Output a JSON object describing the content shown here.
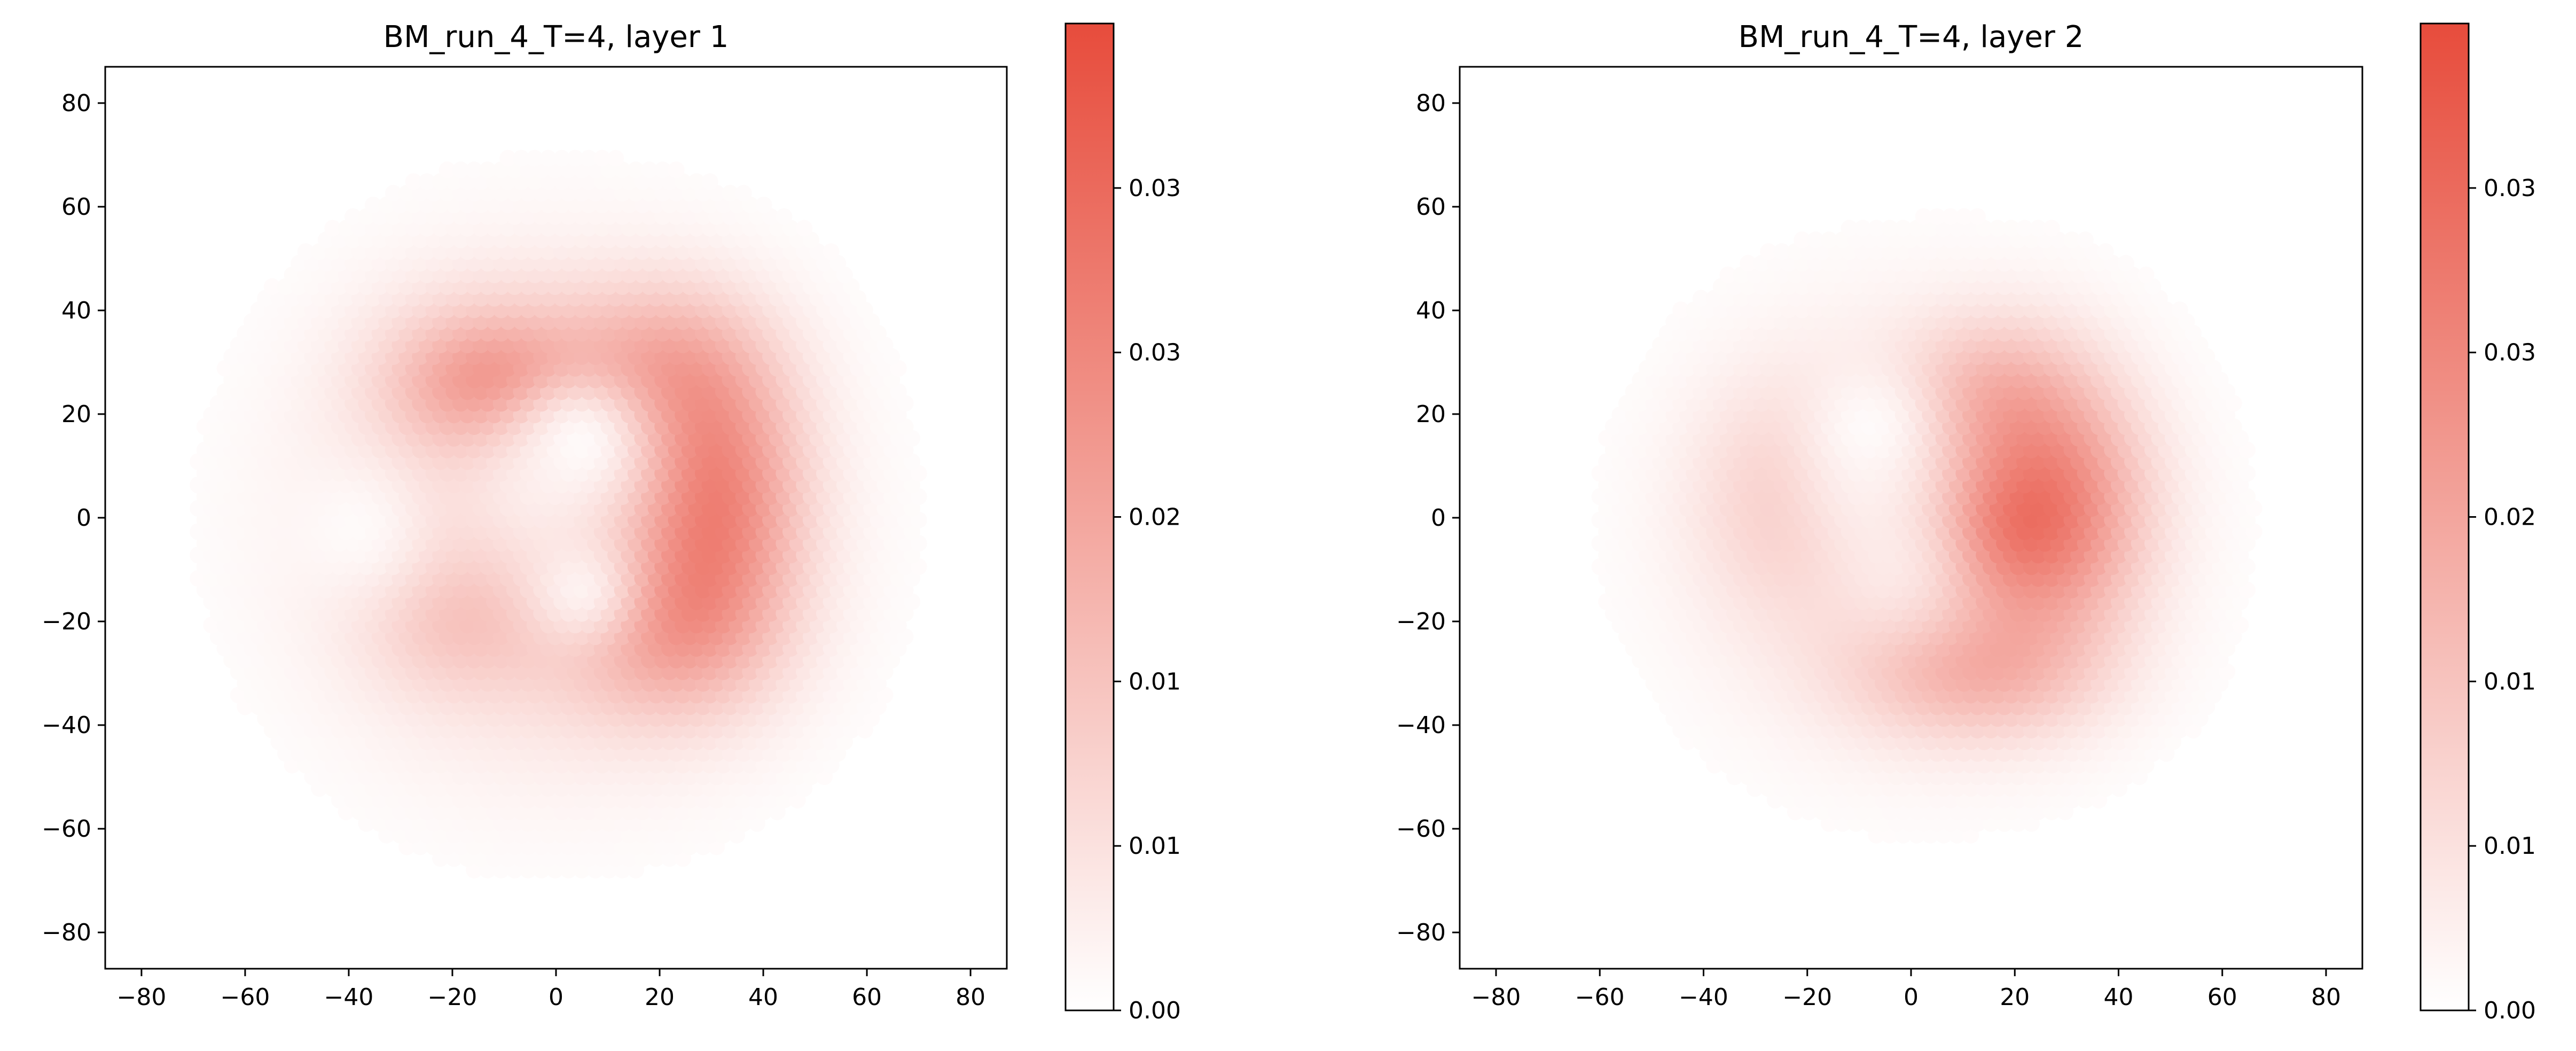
{
  "chart_data": [
    {
      "type": "heatmap",
      "title": "BM_run_4_T=4, layer 1",
      "xlabel": "",
      "ylabel": "",
      "xlim": [
        -87,
        87
      ],
      "ylim": [
        -87,
        87
      ],
      "x_ticks": [
        -80,
        -60,
        -40,
        -20,
        0,
        20,
        40,
        60,
        80
      ],
      "x_tick_labels": [
        "−80",
        "−60",
        "−40",
        "−20",
        "0",
        "20",
        "40",
        "60",
        "80"
      ],
      "y_ticks": [
        80,
        60,
        40,
        20,
        0,
        -20,
        -40,
        -60,
        -80
      ],
      "y_tick_labels": [
        "80",
        "60",
        "40",
        "20",
        "0",
        "−20",
        "−40",
        "−60",
        "−80"
      ],
      "grid": false,
      "colormap": [
        "#ffffff",
        "#e74c3c"
      ],
      "colorbar": {
        "min": 0.0,
        "max": 0.039,
        "tick_values": [
          0.0,
          0.0065,
          0.013,
          0.0195,
          0.026,
          0.0325
        ],
        "tick_labels": [
          "0.00",
          "0.01",
          "0.01",
          "0.02",
          "0.03",
          "0.03"
        ]
      },
      "blobs": [
        {
          "x": 0,
          "y": 0,
          "sx": 30,
          "sy": 30,
          "amp": 0.012
        },
        {
          "x": -15,
          "y": 28,
          "sx": 14,
          "sy": 11,
          "amp": 0.01
        },
        {
          "x": 20,
          "y": 30,
          "sx": 14,
          "sy": 11,
          "amp": 0.012
        },
        {
          "x": 32,
          "y": 4,
          "sx": 11,
          "sy": 18,
          "amp": 0.02
        },
        {
          "x": 22,
          "y": -22,
          "sx": 14,
          "sy": 12,
          "amp": 0.013
        },
        {
          "x": -20,
          "y": -20,
          "sx": 12,
          "sy": 10,
          "amp": 0.006
        },
        {
          "x": -10,
          "y": 25,
          "sx": 12,
          "sy": 8,
          "amp": 0.008
        }
      ],
      "holes": [
        {
          "x": 5,
          "y": 15,
          "s": 9,
          "depth": 0.9
        },
        {
          "x": 5,
          "y": -14,
          "s": 8,
          "depth": 0.8
        },
        {
          "x": -38,
          "y": -2,
          "s": 10,
          "depth": 0.8
        },
        {
          "x": -5,
          "y": 5,
          "s": 12,
          "depth": 0.6
        }
      ]
    },
    {
      "type": "heatmap",
      "title": "BM_run_4_T=4, layer 2",
      "xlabel": "",
      "ylabel": "",
      "xlim": [
        -87,
        87
      ],
      "ylim": [
        -87,
        87
      ],
      "x_ticks": [
        -80,
        -60,
        -40,
        -20,
        0,
        20,
        40,
        60,
        80
      ],
      "x_tick_labels": [
        "−80",
        "−60",
        "−40",
        "−20",
        "0",
        "20",
        "40",
        "60",
        "80"
      ],
      "y_ticks": [
        80,
        60,
        40,
        20,
        0,
        -20,
        -40,
        -60,
        -80
      ],
      "y_tick_labels": [
        "80",
        "60",
        "40",
        "20",
        "0",
        "−20",
        "−40",
        "−60",
        "−80"
      ],
      "grid": false,
      "colormap": [
        "#ffffff",
        "#e74c3c"
      ],
      "colorbar": {
        "min": 0.0,
        "max": 0.039,
        "tick_values": [
          0.0,
          0.0065,
          0.013,
          0.0195,
          0.026,
          0.0325
        ],
        "tick_labels": [
          "0.00",
          "0.01",
          "0.01",
          "0.02",
          "0.03",
          "0.03"
        ]
      },
      "blobs": [
        {
          "x": 2,
          "y": -2,
          "sx": 28,
          "sy": 27,
          "amp": 0.009
        },
        {
          "x": 28,
          "y": 2,
          "sx": 12,
          "sy": 17,
          "amp": 0.022
        },
        {
          "x": 12,
          "y": -30,
          "sx": 16,
          "sy": 9,
          "amp": 0.012
        },
        {
          "x": 15,
          "y": 25,
          "sx": 12,
          "sy": 10,
          "amp": 0.009
        },
        {
          "x": 15,
          "y": -3,
          "sx": 9,
          "sy": 9,
          "amp": 0.008
        },
        {
          "x": -25,
          "y": 5,
          "sx": 12,
          "sy": 15,
          "amp": 0.006
        }
      ],
      "holes": [
        {
          "x": -8,
          "y": 18,
          "s": 9,
          "depth": 0.85
        },
        {
          "x": -2,
          "y": -10,
          "s": 10,
          "depth": 0.5
        },
        {
          "x": -10,
          "y": 5,
          "s": 10,
          "depth": 0.5
        }
      ]
    }
  ]
}
